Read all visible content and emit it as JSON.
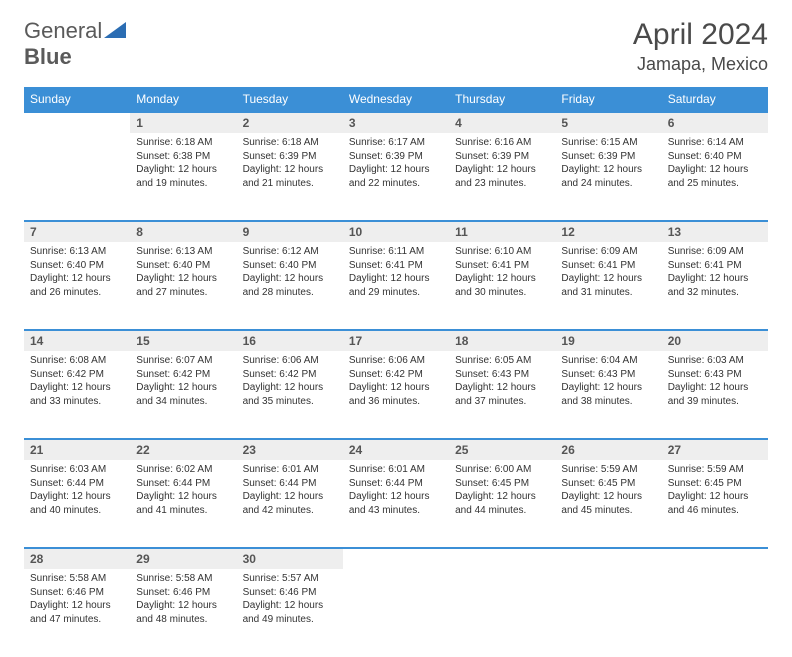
{
  "logo": {
    "word1": "General",
    "word2": "Blue"
  },
  "title": "April 2024",
  "location": "Jamapa, Mexico",
  "colors": {
    "header_bg": "#3b8fd6",
    "header_text": "#ffffff",
    "daynum_bg": "#eeeeee",
    "row_border": "#3b8fd6",
    "logo_accent": "#2b6db3"
  },
  "weekdays": [
    "Sunday",
    "Monday",
    "Tuesday",
    "Wednesday",
    "Thursday",
    "Friday",
    "Saturday"
  ],
  "weeks": [
    {
      "nums": [
        "",
        "1",
        "2",
        "3",
        "4",
        "5",
        "6"
      ],
      "cells": [
        null,
        {
          "sunrise": "Sunrise: 6:18 AM",
          "sunset": "Sunset: 6:38 PM",
          "day1": "Daylight: 12 hours",
          "day2": "and 19 minutes."
        },
        {
          "sunrise": "Sunrise: 6:18 AM",
          "sunset": "Sunset: 6:39 PM",
          "day1": "Daylight: 12 hours",
          "day2": "and 21 minutes."
        },
        {
          "sunrise": "Sunrise: 6:17 AM",
          "sunset": "Sunset: 6:39 PM",
          "day1": "Daylight: 12 hours",
          "day2": "and 22 minutes."
        },
        {
          "sunrise": "Sunrise: 6:16 AM",
          "sunset": "Sunset: 6:39 PM",
          "day1": "Daylight: 12 hours",
          "day2": "and 23 minutes."
        },
        {
          "sunrise": "Sunrise: 6:15 AM",
          "sunset": "Sunset: 6:39 PM",
          "day1": "Daylight: 12 hours",
          "day2": "and 24 minutes."
        },
        {
          "sunrise": "Sunrise: 6:14 AM",
          "sunset": "Sunset: 6:40 PM",
          "day1": "Daylight: 12 hours",
          "day2": "and 25 minutes."
        }
      ]
    },
    {
      "nums": [
        "7",
        "8",
        "9",
        "10",
        "11",
        "12",
        "13"
      ],
      "cells": [
        {
          "sunrise": "Sunrise: 6:13 AM",
          "sunset": "Sunset: 6:40 PM",
          "day1": "Daylight: 12 hours",
          "day2": "and 26 minutes."
        },
        {
          "sunrise": "Sunrise: 6:13 AM",
          "sunset": "Sunset: 6:40 PM",
          "day1": "Daylight: 12 hours",
          "day2": "and 27 minutes."
        },
        {
          "sunrise": "Sunrise: 6:12 AM",
          "sunset": "Sunset: 6:40 PM",
          "day1": "Daylight: 12 hours",
          "day2": "and 28 minutes."
        },
        {
          "sunrise": "Sunrise: 6:11 AM",
          "sunset": "Sunset: 6:41 PM",
          "day1": "Daylight: 12 hours",
          "day2": "and 29 minutes."
        },
        {
          "sunrise": "Sunrise: 6:10 AM",
          "sunset": "Sunset: 6:41 PM",
          "day1": "Daylight: 12 hours",
          "day2": "and 30 minutes."
        },
        {
          "sunrise": "Sunrise: 6:09 AM",
          "sunset": "Sunset: 6:41 PM",
          "day1": "Daylight: 12 hours",
          "day2": "and 31 minutes."
        },
        {
          "sunrise": "Sunrise: 6:09 AM",
          "sunset": "Sunset: 6:41 PM",
          "day1": "Daylight: 12 hours",
          "day2": "and 32 minutes."
        }
      ]
    },
    {
      "nums": [
        "14",
        "15",
        "16",
        "17",
        "18",
        "19",
        "20"
      ],
      "cells": [
        {
          "sunrise": "Sunrise: 6:08 AM",
          "sunset": "Sunset: 6:42 PM",
          "day1": "Daylight: 12 hours",
          "day2": "and 33 minutes."
        },
        {
          "sunrise": "Sunrise: 6:07 AM",
          "sunset": "Sunset: 6:42 PM",
          "day1": "Daylight: 12 hours",
          "day2": "and 34 minutes."
        },
        {
          "sunrise": "Sunrise: 6:06 AM",
          "sunset": "Sunset: 6:42 PM",
          "day1": "Daylight: 12 hours",
          "day2": "and 35 minutes."
        },
        {
          "sunrise": "Sunrise: 6:06 AM",
          "sunset": "Sunset: 6:42 PM",
          "day1": "Daylight: 12 hours",
          "day2": "and 36 minutes."
        },
        {
          "sunrise": "Sunrise: 6:05 AM",
          "sunset": "Sunset: 6:43 PM",
          "day1": "Daylight: 12 hours",
          "day2": "and 37 minutes."
        },
        {
          "sunrise": "Sunrise: 6:04 AM",
          "sunset": "Sunset: 6:43 PM",
          "day1": "Daylight: 12 hours",
          "day2": "and 38 minutes."
        },
        {
          "sunrise": "Sunrise: 6:03 AM",
          "sunset": "Sunset: 6:43 PM",
          "day1": "Daylight: 12 hours",
          "day2": "and 39 minutes."
        }
      ]
    },
    {
      "nums": [
        "21",
        "22",
        "23",
        "24",
        "25",
        "26",
        "27"
      ],
      "cells": [
        {
          "sunrise": "Sunrise: 6:03 AM",
          "sunset": "Sunset: 6:44 PM",
          "day1": "Daylight: 12 hours",
          "day2": "and 40 minutes."
        },
        {
          "sunrise": "Sunrise: 6:02 AM",
          "sunset": "Sunset: 6:44 PM",
          "day1": "Daylight: 12 hours",
          "day2": "and 41 minutes."
        },
        {
          "sunrise": "Sunrise: 6:01 AM",
          "sunset": "Sunset: 6:44 PM",
          "day1": "Daylight: 12 hours",
          "day2": "and 42 minutes."
        },
        {
          "sunrise": "Sunrise: 6:01 AM",
          "sunset": "Sunset: 6:44 PM",
          "day1": "Daylight: 12 hours",
          "day2": "and 43 minutes."
        },
        {
          "sunrise": "Sunrise: 6:00 AM",
          "sunset": "Sunset: 6:45 PM",
          "day1": "Daylight: 12 hours",
          "day2": "and 44 minutes."
        },
        {
          "sunrise": "Sunrise: 5:59 AM",
          "sunset": "Sunset: 6:45 PM",
          "day1": "Daylight: 12 hours",
          "day2": "and 45 minutes."
        },
        {
          "sunrise": "Sunrise: 5:59 AM",
          "sunset": "Sunset: 6:45 PM",
          "day1": "Daylight: 12 hours",
          "day2": "and 46 minutes."
        }
      ]
    },
    {
      "nums": [
        "28",
        "29",
        "30",
        "",
        "",
        "",
        ""
      ],
      "cells": [
        {
          "sunrise": "Sunrise: 5:58 AM",
          "sunset": "Sunset: 6:46 PM",
          "day1": "Daylight: 12 hours",
          "day2": "and 47 minutes."
        },
        {
          "sunrise": "Sunrise: 5:58 AM",
          "sunset": "Sunset: 6:46 PM",
          "day1": "Daylight: 12 hours",
          "day2": "and 48 minutes."
        },
        {
          "sunrise": "Sunrise: 5:57 AM",
          "sunset": "Sunset: 6:46 PM",
          "day1": "Daylight: 12 hours",
          "day2": "and 49 minutes."
        },
        null,
        null,
        null,
        null
      ]
    }
  ]
}
